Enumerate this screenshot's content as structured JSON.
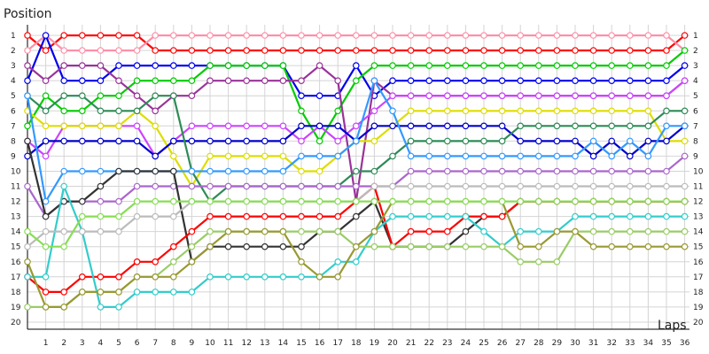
{
  "chart_data": {
    "type": "line",
    "ylabel": "Position",
    "xlabel": "Laps",
    "xlim": [
      0,
      36
    ],
    "ylim": [
      1,
      20
    ],
    "x_ticks": [
      1,
      2,
      3,
      4,
      5,
      6,
      7,
      8,
      9,
      10,
      11,
      12,
      13,
      14,
      15,
      16,
      17,
      18,
      19,
      20,
      21,
      22,
      23,
      24,
      25,
      26,
      27,
      28,
      29,
      30,
      31,
      32,
      33,
      34,
      35,
      36
    ],
    "y_ticks": [
      1,
      2,
      3,
      4,
      5,
      6,
      7,
      8,
      9,
      10,
      11,
      12,
      13,
      14,
      15,
      16,
      17,
      18,
      19,
      20
    ],
    "grid": true,
    "x": [
      0,
      1,
      2,
      3,
      4,
      5,
      6,
      7,
      8,
      9,
      10,
      11,
      12,
      13,
      14,
      15,
      16,
      17,
      18,
      19,
      20,
      21,
      22,
      23,
      24,
      25,
      26,
      27,
      28,
      29,
      30,
      31,
      32,
      33,
      34,
      35,
      36
    ],
    "series": [
      {
        "color": "#ff0000",
        "values": [
          1,
          2,
          1,
          1,
          1,
          1,
          1,
          2,
          2,
          2,
          2,
          2,
          2,
          2,
          2,
          2,
          2,
          2,
          2,
          2,
          2,
          2,
          2,
          2,
          2,
          2,
          2,
          2,
          2,
          2,
          2,
          2,
          2,
          2,
          2,
          2,
          1
        ]
      },
      {
        "color": "#ff8fa8",
        "values": [
          2,
          1,
          2,
          2,
          2,
          2,
          2,
          1,
          1,
          1,
          1,
          1,
          1,
          1,
          1,
          1,
          1,
          1,
          1,
          1,
          1,
          1,
          1,
          1,
          1,
          1,
          1,
          1,
          1,
          1,
          1,
          1,
          1,
          1,
          1,
          1,
          2
        ]
      },
      {
        "color": "#0000ee",
        "values": [
          4,
          1,
          4,
          4,
          4,
          3,
          3,
          3,
          3,
          3,
          3,
          3,
          3,
          3,
          3,
          5,
          5,
          5,
          3,
          5,
          4,
          4,
          4,
          4,
          4,
          4,
          4,
          4,
          4,
          4,
          4,
          4,
          4,
          4,
          4,
          4,
          3
        ]
      },
      {
        "color": "#00cc00",
        "values": [
          7,
          5,
          6,
          6,
          5,
          5,
          4,
          4,
          4,
          4,
          3,
          3,
          3,
          3,
          3,
          6,
          8,
          6,
          4,
          3,
          3,
          3,
          3,
          3,
          3,
          3,
          3,
          3,
          3,
          3,
          3,
          3,
          3,
          3,
          3,
          3,
          2
        ]
      },
      {
        "color": "#993399",
        "values": [
          3,
          4,
          3,
          3,
          3,
          4,
          5,
          6,
          5,
          5,
          4,
          4,
          4,
          4,
          4,
          4,
          3,
          4,
          12,
          4,
          5,
          5,
          5,
          5,
          5,
          5,
          5,
          5,
          5,
          5,
          5,
          5,
          5,
          5,
          5,
          5,
          4
        ]
      },
      {
        "color": "#cc44ff",
        "values": [
          8,
          9,
          7,
          7,
          7,
          7,
          7,
          9,
          8,
          7,
          7,
          7,
          7,
          7,
          7,
          8,
          7,
          8,
          7,
          6,
          5,
          5,
          5,
          5,
          5,
          5,
          5,
          5,
          5,
          5,
          5,
          5,
          5,
          5,
          5,
          5,
          4
        ]
      },
      {
        "color": "#dddd00",
        "values": [
          6,
          7,
          7,
          7,
          7,
          7,
          6,
          7,
          9,
          11,
          9,
          9,
          9,
          9,
          9,
          10,
          10,
          9,
          8,
          8,
          7,
          6,
          6,
          6,
          6,
          6,
          6,
          6,
          6,
          6,
          6,
          6,
          6,
          6,
          6,
          8,
          8
        ]
      },
      {
        "color": "#0000cc",
        "values": [
          9,
          8,
          8,
          8,
          8,
          8,
          8,
          9,
          8,
          8,
          8,
          8,
          8,
          8,
          8,
          7,
          7,
          7,
          8,
          7,
          7,
          7,
          7,
          7,
          7,
          7,
          7,
          8,
          8,
          8,
          8,
          9,
          8,
          9,
          8,
          8,
          7
        ]
      },
      {
        "color": "#2e8b57",
        "values": [
          5,
          6,
          5,
          5,
          6,
          6,
          6,
          5,
          5,
          10,
          12,
          11,
          11,
          11,
          11,
          11,
          11,
          11,
          10,
          10,
          9,
          8,
          8,
          8,
          8,
          8,
          8,
          7,
          7,
          7,
          7,
          7,
          7,
          7,
          7,
          6,
          6
        ]
      },
      {
        "color": "#3399ff",
        "values": [
          5,
          12,
          10,
          10,
          10,
          10,
          10,
          10,
          10,
          10,
          10,
          10,
          10,
          10,
          10,
          9,
          9,
          9,
          8,
          4,
          6,
          9,
          9,
          9,
          9,
          9,
          9,
          9,
          9,
          9,
          9,
          8,
          9,
          8,
          9,
          7,
          7
        ]
      },
      {
        "color": "#aa66cc",
        "values": [
          11,
          13,
          12,
          12,
          12,
          12,
          11,
          11,
          11,
          11,
          11,
          11,
          11,
          11,
          11,
          11,
          11,
          11,
          11,
          11,
          11,
          10,
          10,
          10,
          10,
          10,
          10,
          10,
          10,
          10,
          10,
          10,
          10,
          10,
          10,
          10,
          9
        ]
      },
      {
        "color": "#333333",
        "values": [
          8,
          13,
          12,
          12,
          11,
          10,
          10,
          10,
          10,
          16,
          15,
          15,
          15,
          15,
          15,
          15,
          14,
          14,
          13,
          12,
          15,
          15,
          15,
          15,
          14,
          13,
          13,
          12,
          12,
          12,
          12,
          12,
          12,
          12,
          12,
          12,
          12
        ]
      },
      {
        "color": "#ff0000",
        "values": [
          17,
          18,
          18,
          17,
          17,
          17,
          16,
          16,
          15,
          14,
          13,
          13,
          13,
          13,
          13,
          13,
          13,
          13,
          12,
          11,
          15,
          14,
          14,
          14,
          13,
          13,
          13,
          12,
          12,
          12,
          12,
          12,
          12,
          12,
          12,
          12,
          12
        ]
      },
      {
        "color": "#33cccc",
        "values": [
          17,
          17,
          11,
          14,
          19,
          19,
          18,
          18,
          18,
          18,
          17,
          17,
          17,
          17,
          17,
          17,
          17,
          16,
          16,
          14,
          13,
          13,
          13,
          13,
          13,
          14,
          15,
          14,
          14,
          14,
          13,
          13,
          13,
          13,
          13,
          13,
          13
        ]
      },
      {
        "color": "#99cc66",
        "values": [
          19,
          19,
          19,
          18,
          18,
          18,
          17,
          17,
          16,
          15,
          14,
          14,
          14,
          14,
          14,
          14,
          14,
          14,
          15,
          15,
          15,
          15,
          15,
          15,
          15,
          15,
          15,
          16,
          16,
          16,
          14,
          14,
          14,
          14,
          14,
          14,
          14
        ]
      },
      {
        "color": "#999933",
        "values": [
          16,
          19,
          19,
          18,
          18,
          18,
          17,
          17,
          17,
          16,
          15,
          14,
          14,
          14,
          14,
          16,
          17,
          17,
          15,
          14,
          12,
          12,
          12,
          12,
          12,
          12,
          12,
          15,
          15,
          14,
          14,
          15,
          15,
          15,
          15,
          15,
          15
        ]
      },
      {
        "color": "#bbbbbb",
        "values": [
          15,
          14,
          14,
          14,
          14,
          14,
          13,
          13,
          13,
          12,
          12,
          12,
          12,
          12,
          12,
          12,
          12,
          12,
          12,
          11,
          11,
          11,
          11,
          11,
          11,
          11,
          11,
          11,
          11,
          11,
          11,
          11,
          11,
          11,
          11,
          11,
          11
        ]
      },
      {
        "color": "#88dd55",
        "values": [
          14,
          15,
          15,
          13,
          13,
          13,
          12,
          12,
          12,
          12,
          12,
          12,
          12,
          12,
          12,
          12,
          12,
          12,
          12,
          12,
          12,
          12,
          12,
          12,
          12,
          12,
          12,
          12,
          12,
          12,
          12,
          12,
          12,
          12,
          12,
          12,
          12
        ]
      }
    ]
  }
}
